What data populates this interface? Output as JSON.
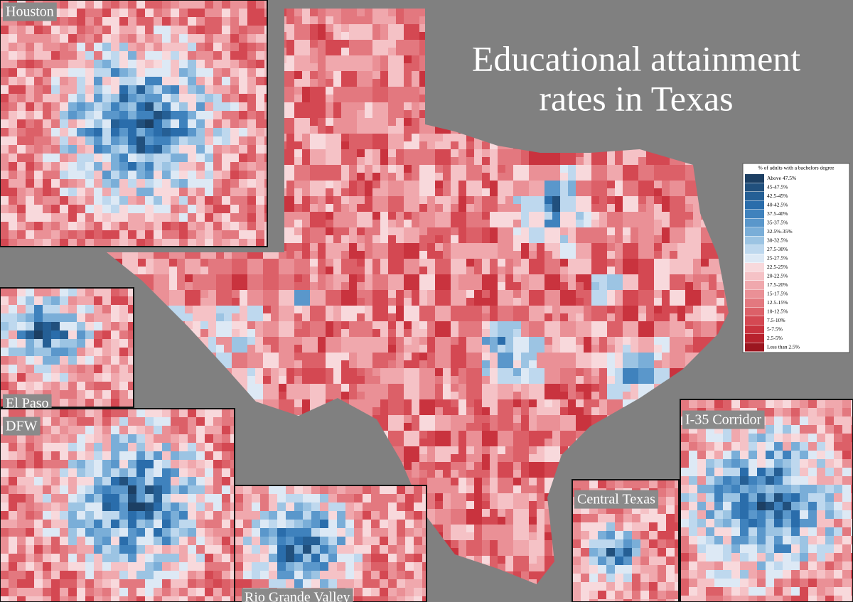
{
  "title_lines": [
    "Educational attainment",
    "rates in Texas"
  ],
  "legend": {
    "title": "% of adults with a bachelors degree",
    "items": [
      {
        "label": "Above 47.5%",
        "color": "#1c3f63"
      },
      {
        "label": "45-47.5%",
        "color": "#21507d"
      },
      {
        "label": "42.5-45%",
        "color": "#255f95"
      },
      {
        "label": "40-42.5%",
        "color": "#2a6dab"
      },
      {
        "label": "37.5-40%",
        "color": "#3f82bd"
      },
      {
        "label": "35-37.5%",
        "color": "#5a97cb"
      },
      {
        "label": "32.5%-35%",
        "color": "#7aaed8"
      },
      {
        "label": "30-32.5%",
        "color": "#9cc4e3"
      },
      {
        "label": "27.5-30%",
        "color": "#bed8ee"
      },
      {
        "label": "25-27.5%",
        "color": "#dde9f5"
      },
      {
        "label": "22.5-25%",
        "color": "#f8d9dc"
      },
      {
        "label": "20-22.5%",
        "color": "#f5c2c6"
      },
      {
        "label": "17.5-20%",
        "color": "#f0a8ad"
      },
      {
        "label": "15-17.5%",
        "color": "#ea9096"
      },
      {
        "label": "12.5-15%",
        "color": "#e3787f"
      },
      {
        "label": "10-12.5%",
        "color": "#dc6068"
      },
      {
        "label": "7.5-10%",
        "color": "#d44852"
      },
      {
        "label": "5-7.5%",
        "color": "#c9333e"
      },
      {
        "label": "2.5-5%",
        "color": "#b8222d"
      },
      {
        "label": "Less than 2.5%",
        "color": "#9c1620"
      }
    ]
  },
  "insets": [
    "Houston",
    "El Paso",
    "DFW",
    "Rio Grande Valley",
    "Central Texas",
    "I-35 Corridor"
  ]
}
